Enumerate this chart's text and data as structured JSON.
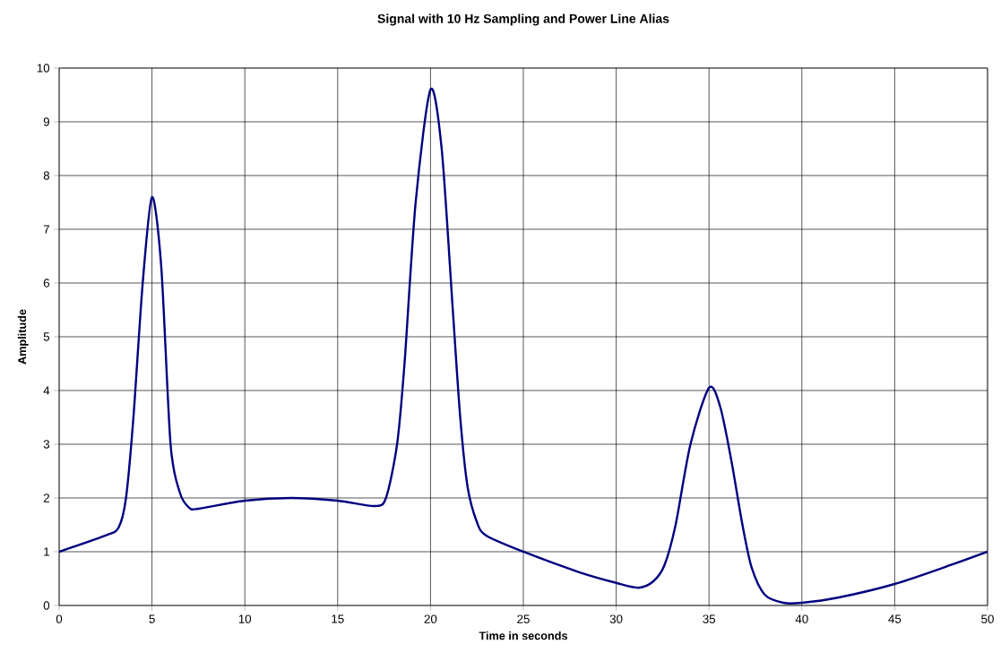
{
  "chart_data": {
    "type": "line",
    "title": "Signal with 10 Hz Sampling and Power Line Alias",
    "xlabel": "Time in seconds",
    "ylabel": "Amplitude",
    "x": [
      0,
      2.5,
      3.2,
      3.6,
      4.0,
      4.5,
      5.0,
      5.5,
      6.0,
      6.5,
      7.0,
      7.5,
      10,
      12.5,
      15,
      17,
      17.6,
      18.2,
      18.6,
      19.2,
      20,
      20.6,
      21.2,
      21.6,
      22,
      22.5,
      23,
      25,
      28,
      30,
      31.2,
      32,
      32.6,
      33.2,
      34,
      35,
      35.6,
      36.2,
      36.8,
      37.3,
      38,
      39,
      40,
      42,
      45,
      48,
      50
    ],
    "series": [
      {
        "color": "#000080",
        "values": [
          1.0,
          1.3,
          1.45,
          2.0,
          3.5,
          6.0,
          7.6,
          6.3,
          3.0,
          2.1,
          1.82,
          1.8,
          1.95,
          2.0,
          1.95,
          1.85,
          2.0,
          3.0,
          4.5,
          7.5,
          9.6,
          8.5,
          5.5,
          3.5,
          2.2,
          1.55,
          1.3,
          1.0,
          0.62,
          0.42,
          0.33,
          0.45,
          0.75,
          1.5,
          3.0,
          4.05,
          3.7,
          2.7,
          1.5,
          0.7,
          0.2,
          0.05,
          0.05,
          0.15,
          0.4,
          0.75,
          1.0
        ]
      }
    ],
    "xlim": [
      0,
      50
    ],
    "ylim": [
      0,
      10
    ],
    "xticks": [
      0,
      5,
      10,
      15,
      20,
      25,
      30,
      35,
      40,
      45,
      50
    ],
    "yticks": [
      0,
      1,
      2,
      3,
      4,
      5,
      6,
      7,
      8,
      9,
      10
    ],
    "grid": true
  }
}
